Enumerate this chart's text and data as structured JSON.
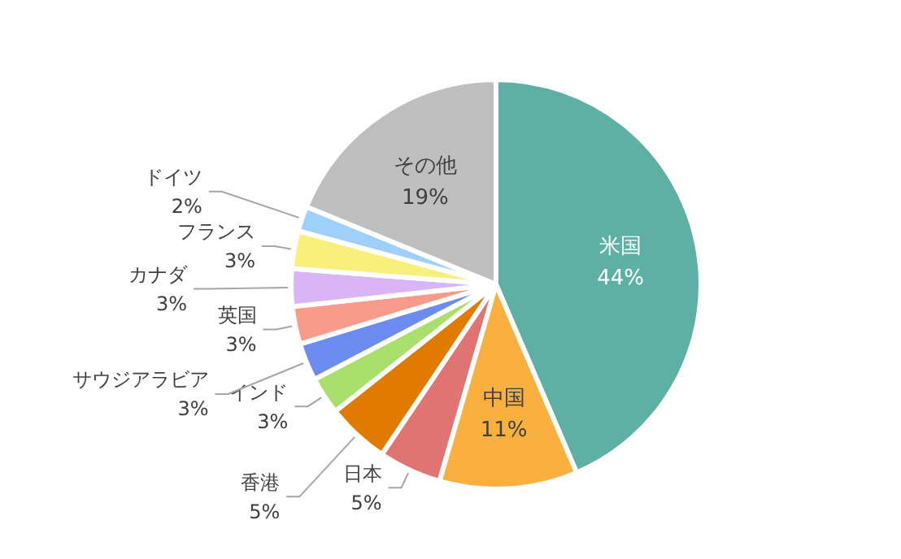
{
  "chart_data": {
    "type": "pie",
    "categories": [
      "米国",
      "中国",
      "日本",
      "香港",
      "インド",
      "サウジアラビア",
      "英国",
      "カナダ",
      "フランス",
      "ドイツ",
      "その他"
    ],
    "values": [
      44,
      11,
      5,
      5,
      3,
      3,
      3,
      3,
      3,
      2,
      19
    ],
    "colors": [
      "#5eb0a5",
      "#f9b03f",
      "#e07473",
      "#e07b00",
      "#a9e06b",
      "#6c8cf2",
      "#f99b8b",
      "#d9b5f8",
      "#f8f07b",
      "#9fcffb",
      "#bfbfbf"
    ],
    "value_labels": [
      "44%",
      "11%",
      "5%",
      "5%",
      "3%",
      "3%",
      "3%",
      "3%",
      "3%",
      "2%",
      "19%"
    ],
    "legend": false
  }
}
